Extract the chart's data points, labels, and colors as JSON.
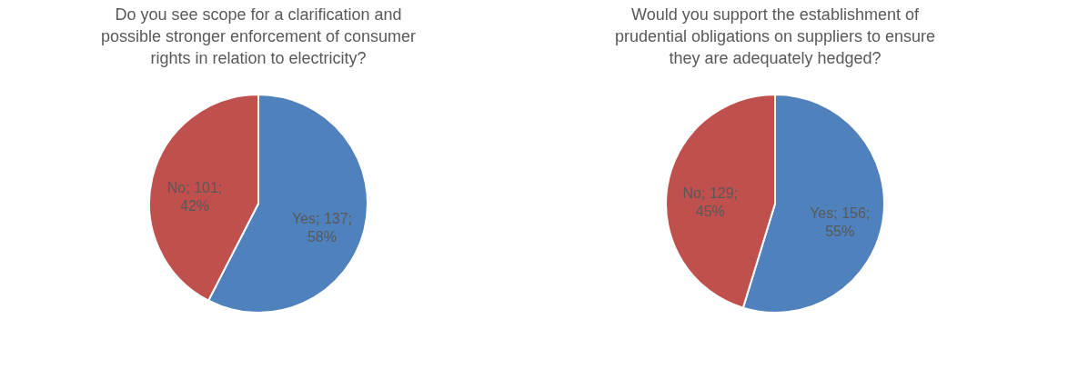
{
  "chart_data": [
    {
      "type": "pie",
      "title": "Do you see scope for a clarification and possible stronger enforcement of consumer rights in relation to electricity?",
      "categories": [
        "Yes",
        "No"
      ],
      "values": [
        137,
        101
      ],
      "colors": [
        "#4f81bd",
        "#c0504d"
      ],
      "value_labels": [
        "137; 58%",
        "101; 42%"
      ],
      "legend": false
    },
    {
      "type": "pie",
      "title": "Would you support the establishment of prudential obligations on suppliers to ensure they are adequately hedged?",
      "categories": [
        "Yes",
        "No"
      ],
      "values": [
        156,
        129
      ],
      "colors": [
        "#4f81bd",
        "#c0504d"
      ],
      "value_labels": [
        "156; 55%",
        "129; 45%"
      ],
      "legend": false
    }
  ]
}
